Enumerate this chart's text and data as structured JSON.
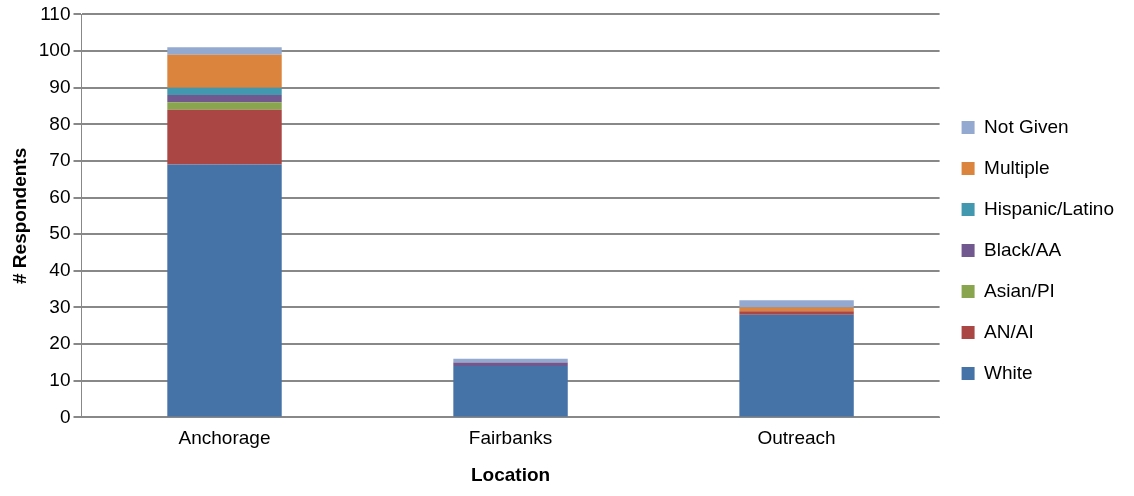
{
  "chart_data": {
    "type": "bar",
    "stacked": true,
    "xlabel": "Location",
    "ylabel": "# Respondents",
    "categories": [
      "Anchorage",
      "Fairbanks",
      "Outreach"
    ],
    "series": [
      {
        "name": "White",
        "color": "#4572a7",
        "values": [
          69,
          14,
          28
        ]
      },
      {
        "name": "AN/AI",
        "color": "#aa4643",
        "values": [
          15,
          0,
          1
        ]
      },
      {
        "name": "Asian/PI",
        "color": "#89a54e",
        "values": [
          2,
          0,
          0
        ]
      },
      {
        "name": "Black/AA",
        "color": "#71588f",
        "values": [
          2,
          1,
          0
        ]
      },
      {
        "name": "Hispanic/Latino",
        "color": "#4198af",
        "values": [
          2,
          0,
          0
        ]
      },
      {
        "name": "Multiple",
        "color": "#db843d",
        "values": [
          9,
          0,
          1
        ]
      },
      {
        "name": "Not Given",
        "color": "#93a9cf",
        "values": [
          2,
          1,
          2
        ]
      }
    ],
    "ylim": [
      0,
      110
    ],
    "yticks": [
      0,
      10,
      20,
      30,
      40,
      50,
      60,
      70,
      80,
      90,
      100,
      110
    ],
    "grid": "y",
    "legend": "right"
  }
}
